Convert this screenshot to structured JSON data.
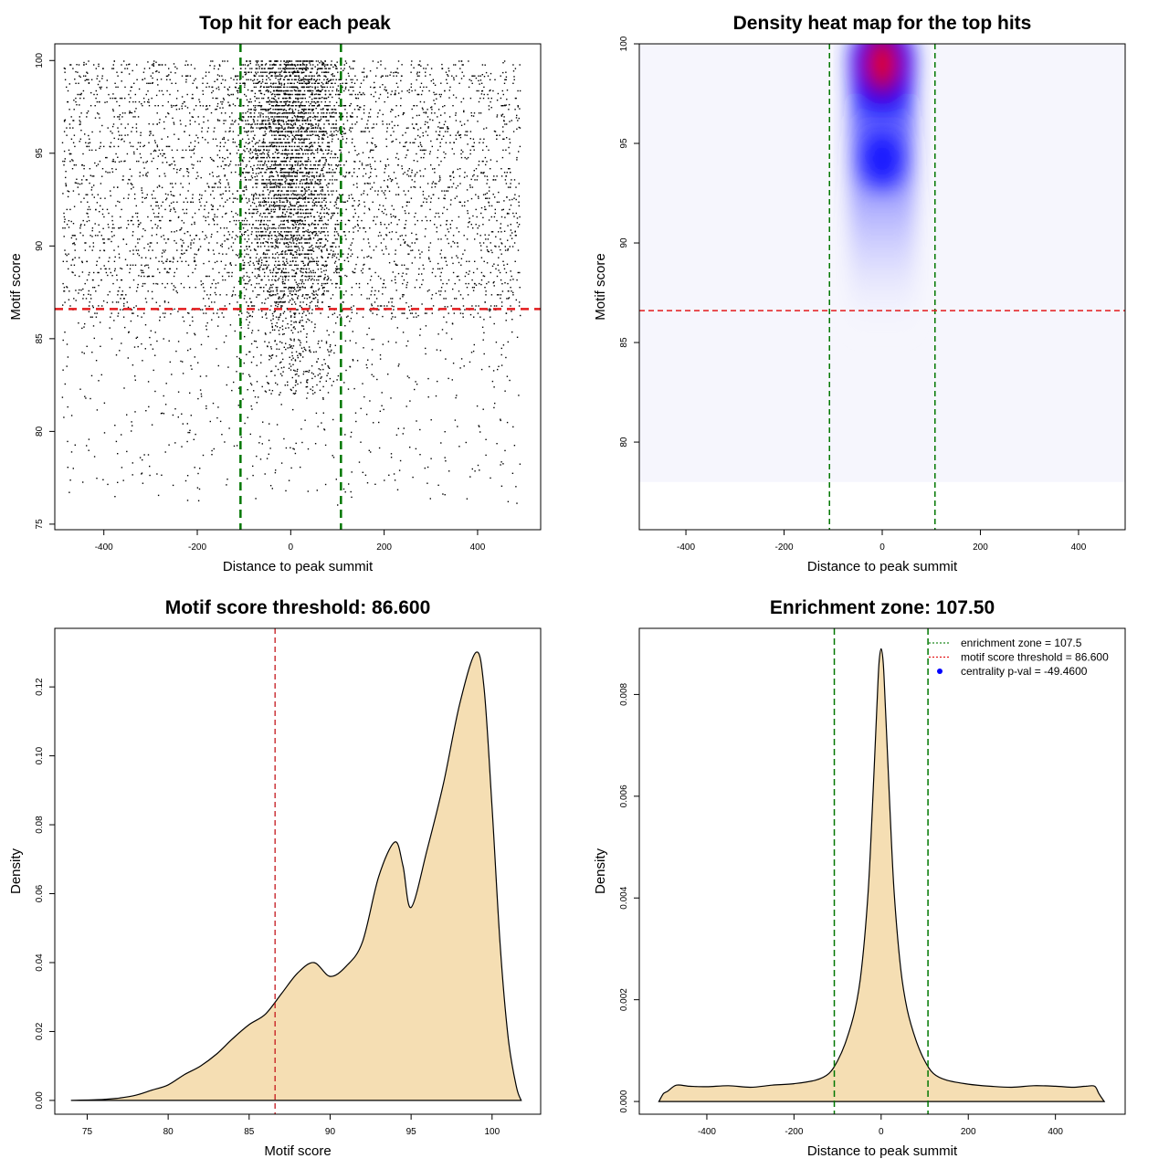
{
  "chart_data": [
    {
      "id": "scatter",
      "type": "scatter",
      "title": "Top hit for each peak",
      "xlabel": "Distance to peak summit",
      "ylabel": "Motif score",
      "xlim": [
        -505,
        535
      ],
      "ylim": [
        74.7,
        100.9
      ],
      "xticks": [
        -400,
        -200,
        0,
        200,
        400
      ],
      "yticks": [
        75,
        80,
        85,
        90,
        95,
        100
      ],
      "vlines": [
        -107.5,
        107.5
      ],
      "hline": 86.6,
      "point_summary": "about 9000 motif hits; x spans -490..490, y spans 75.6..100; dense near x=0 and at high scores"
    },
    {
      "id": "heatmap",
      "type": "heatmap",
      "title": "Density heat map for the top hits",
      "xlabel": "Distance to peak summit",
      "ylabel": "Motif score",
      "xlim": [
        -495,
        495
      ],
      "ylim": [
        75.6,
        100
      ],
      "xticks": [
        -400,
        -200,
        0,
        200,
        400
      ],
      "yticks": [
        80,
        85,
        90,
        95,
        100
      ],
      "vlines": [
        -107.5,
        107.5
      ],
      "hline": 86.6,
      "hotspots": [
        {
          "x": 0,
          "y": 99.0,
          "level": "max"
        },
        {
          "x": 0,
          "y": 94.2,
          "level": "high"
        }
      ]
    },
    {
      "id": "score-density",
      "type": "area",
      "title": "Motif score threshold: 86.600",
      "xlabel": "Motif score",
      "ylabel": "Density",
      "xlim": [
        73.0,
        103.0
      ],
      "ylim": [
        -0.004,
        0.137
      ],
      "xticks": [
        75,
        80,
        85,
        90,
        95,
        100
      ],
      "yticks": [
        0.0,
        0.02,
        0.04,
        0.06,
        0.08,
        0.1,
        0.12
      ],
      "ytick_labels": [
        "0.00",
        "0.02",
        "0.04",
        "0.06",
        "0.08",
        "0.10",
        "0.12"
      ],
      "vline": 86.6,
      "x": [
        74.0,
        76.0,
        77.0,
        78.0,
        79.0,
        80.0,
        81.0,
        82.0,
        83.0,
        84.0,
        85.0,
        86.0,
        87.0,
        88.0,
        89.0,
        90.0,
        91.0,
        92.0,
        93.0,
        94.0,
        94.5,
        95.0,
        96.0,
        97.0,
        98.0,
        99.0,
        99.5,
        100.0,
        100.5,
        101.0,
        101.5,
        101.8
      ],
      "y": [
        0.0,
        0.0003,
        0.0007,
        0.0015,
        0.003,
        0.0045,
        0.0075,
        0.01,
        0.0135,
        0.018,
        0.022,
        0.025,
        0.031,
        0.037,
        0.04,
        0.036,
        0.039,
        0.046,
        0.065,
        0.075,
        0.068,
        0.056,
        0.073,
        0.092,
        0.115,
        0.13,
        0.12,
        0.085,
        0.045,
        0.018,
        0.004,
        0.0
      ]
    },
    {
      "id": "distance-density",
      "type": "area",
      "title": "Enrichment zone: 107.50",
      "xlabel": "Distance to peak summit",
      "ylabel": "Density",
      "xlim": [
        -555,
        560
      ],
      "ylim": [
        -0.00025,
        0.0093
      ],
      "xticks": [
        -400,
        -200,
        0,
        200,
        400
      ],
      "yticks": [
        0.0,
        0.002,
        0.004,
        0.006,
        0.008
      ],
      "ytick_labels": [
        "0.000",
        "0.002",
        "0.004",
        "0.006",
        "0.008"
      ],
      "vlines": [
        -107.5,
        107.5
      ],
      "x": [
        -510,
        -500,
        -490,
        -470,
        -440,
        -400,
        -350,
        -300,
        -250,
        -200,
        -150,
        -120,
        -100,
        -80,
        -60,
        -45,
        -30,
        -20,
        -10,
        -5,
        0,
        5,
        10,
        20,
        30,
        45,
        60,
        80,
        100,
        120,
        150,
        200,
        250,
        300,
        350,
        400,
        440,
        470,
        490,
        500,
        512
      ],
      "y": [
        0.0,
        0.00015,
        0.0002,
        0.00032,
        0.0003,
        0.00029,
        0.00031,
        0.00028,
        0.00032,
        0.00035,
        0.00042,
        0.00055,
        0.0008,
        0.0012,
        0.0018,
        0.0026,
        0.0041,
        0.0058,
        0.0077,
        0.0086,
        0.0089,
        0.0086,
        0.0077,
        0.0058,
        0.0041,
        0.0026,
        0.0018,
        0.0012,
        0.0008,
        0.00055,
        0.00042,
        0.00034,
        0.0003,
        0.00028,
        0.00031,
        0.0003,
        0.00028,
        0.0003,
        0.0003,
        0.00015,
        0.0
      ],
      "legend": [
        {
          "label": "enrichment zone = 107.5",
          "symbol": "line",
          "color": "#228B22"
        },
        {
          "label": "motif score threshold = 86.600",
          "symbol": "line",
          "color": "#E31A1C"
        },
        {
          "label": "centrality p-val = -49.4600",
          "symbol": "dot",
          "color": "#0000FF"
        }
      ]
    }
  ],
  "colors": {
    "fill": "#F5DEB3",
    "threshold_red": "#E31A1C",
    "zone_green": "#007700",
    "heat_low": "#FFFFFF",
    "heat_mid": "#0000FF",
    "heat_high": "#FF0000"
  }
}
